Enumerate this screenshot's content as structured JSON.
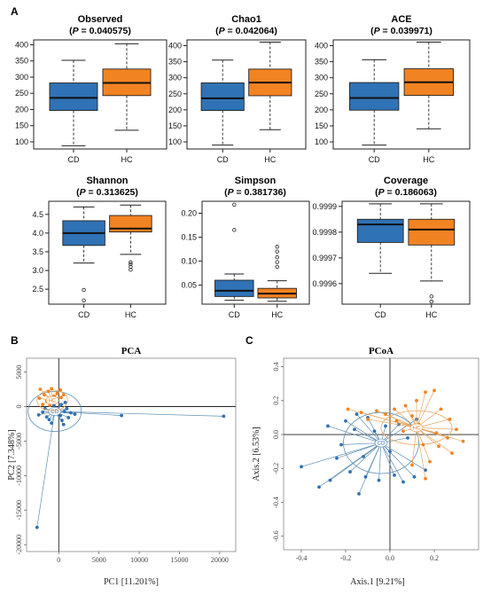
{
  "panel_labels": [
    "A",
    "B",
    "C"
  ],
  "colors": {
    "cd": "#2f72b5",
    "hc": "#f28322",
    "cd_line": "#5d8fb3",
    "hc_line": "#e8a55c"
  },
  "chart_data": [
    {
      "type": "box",
      "title": "Observed",
      "pvalue_label": "P",
      "pvalue_text": " = 0.040575",
      "categories": [
        "CD",
        "HC"
      ],
      "yticks": [
        100,
        150,
        200,
        250,
        300,
        350,
        400
      ],
      "ytick_labels": [
        "100",
        "150",
        "200",
        "250",
        "300",
        "350",
        "400"
      ],
      "ylim": [
        78,
        415
      ],
      "boxes": [
        {
          "group": "CD",
          "whisker_low": 88,
          "q1": 197,
          "median": 236,
          "q3": 282,
          "whisker_high": 352,
          "outliers": []
        },
        {
          "group": "HC",
          "whisker_low": 136,
          "q1": 243,
          "median": 282,
          "q3": 325,
          "whisker_high": 403,
          "outliers": []
        }
      ]
    },
    {
      "type": "box",
      "title": "Chao1",
      "pvalue_label": "P",
      "pvalue_text": " = 0.042064",
      "categories": [
        "CD",
        "HC"
      ],
      "yticks": [
        100,
        150,
        200,
        250,
        300,
        350,
        400
      ],
      "ytick_labels": [
        "100",
        "150",
        "200",
        "250",
        "300",
        "350",
        "400"
      ],
      "ylim": [
        78,
        418
      ],
      "boxes": [
        {
          "group": "CD",
          "whisker_low": 90,
          "q1": 198,
          "median": 236,
          "q3": 284,
          "whisker_high": 355,
          "outliers": []
        },
        {
          "group": "HC",
          "whisker_low": 138,
          "q1": 244,
          "median": 285,
          "q3": 327,
          "whisker_high": 411,
          "outliers": []
        }
      ]
    },
    {
      "type": "box",
      "title": "ACE",
      "pvalue_label": "P",
      "pvalue_text": " = 0.039971",
      "categories": [
        "CD",
        "HC"
      ],
      "yticks": [
        100,
        150,
        200,
        250,
        300,
        350,
        400
      ],
      "ytick_labels": [
        "100",
        "150",
        "200",
        "250",
        "300",
        "350",
        "400"
      ],
      "ylim": [
        78,
        418
      ],
      "boxes": [
        {
          "group": "CD",
          "whisker_low": 90,
          "q1": 199,
          "median": 237,
          "q3": 285,
          "whisker_high": 356,
          "outliers": []
        },
        {
          "group": "HC",
          "whisker_low": 141,
          "q1": 245,
          "median": 286,
          "q3": 328,
          "whisker_high": 411,
          "outliers": []
        }
      ]
    },
    {
      "type": "box",
      "title": "Shannon",
      "pvalue_label": "P",
      "pvalue_text": " = 0.313625",
      "categories": [
        "CD",
        "HC"
      ],
      "yticks": [
        2.5,
        3.0,
        3.5,
        4.0,
        4.5
      ],
      "ytick_labels": [
        "2.5",
        "3.0",
        "3.5",
        "4.0",
        "4.5"
      ],
      "ylim": [
        2.1,
        4.85
      ],
      "boxes": [
        {
          "group": "CD",
          "whisker_low": 3.2,
          "q1": 3.67,
          "median": 4.0,
          "q3": 4.33,
          "whisker_high": 4.7,
          "outliers": [
            2.48,
            2.2
          ]
        },
        {
          "group": "HC",
          "whisker_low": 3.43,
          "q1": 4.03,
          "median": 4.12,
          "q3": 4.47,
          "whisker_high": 4.75,
          "outliers": [
            3.22,
            3.17,
            3.1,
            3.02
          ]
        }
      ]
    },
    {
      "type": "box",
      "title": "Simpson",
      "pvalue_label": "P",
      "pvalue_text": " = 0.381736",
      "categories": [
        "CD",
        "HC"
      ],
      "yticks": [
        0.05,
        0.1,
        0.15,
        0.2
      ],
      "ytick_labels": [
        "0.05",
        "0.10",
        "0.15",
        "0.20"
      ],
      "ylim": [
        0.01,
        0.225
      ],
      "boxes": [
        {
          "group": "CD",
          "whisker_low": 0.018,
          "q1": 0.026,
          "median": 0.038,
          "q3": 0.06,
          "whisker_high": 0.073,
          "outliers": [
            0.218,
            0.165
          ]
        },
        {
          "group": "HC",
          "whisker_low": 0.016,
          "q1": 0.023,
          "median": 0.032,
          "q3": 0.043,
          "whisker_high": 0.059,
          "outliers": [
            0.13,
            0.12,
            0.108,
            0.098,
            0.088
          ]
        }
      ]
    },
    {
      "type": "box",
      "title": "Coverage",
      "pvalue_label": "P",
      "pvalue_text": " = 0.186063",
      "categories": [
        "CD",
        "HC"
      ],
      "yticks": [
        0.9996,
        0.9997,
        0.9998,
        0.9999
      ],
      "ytick_labels": [
        "0.9996",
        "0.9997",
        "0.9998",
        "0.9999"
      ],
      "ylim": [
        0.99952,
        0.99992
      ],
      "boxes": [
        {
          "group": "CD",
          "whisker_low": 0.99964,
          "q1": 0.99976,
          "median": 0.99983,
          "q3": 0.99985,
          "whisker_high": 0.99991,
          "outliers": []
        },
        {
          "group": "HC",
          "whisker_low": 0.99961,
          "q1": 0.99975,
          "median": 0.99981,
          "q3": 0.99985,
          "whisker_high": 0.99991,
          "outliers": [
            0.99955,
            0.99953
          ]
        }
      ]
    },
    {
      "type": "scatter",
      "title": "PCA",
      "xlabel": "PC1 [11.201%]",
      "ylabel": "PC2 [7.348%]",
      "xlim": [
        -4000,
        22000
      ],
      "ylim": [
        -21000,
        7000
      ],
      "xticks": [
        0,
        5000,
        10000,
        15000,
        20000
      ],
      "xtick_labels": [
        "0",
        "5000",
        "10000",
        "15000",
        "20000"
      ],
      "yticks": [
        5000,
        0,
        -5000,
        -10000,
        -15000,
        -20000
      ],
      "ytick_labels": [
        "5000",
        "0",
        "-5000",
        "-10000",
        "-15000",
        "-20000"
      ],
      "groups": [
        {
          "name": "CD",
          "centroid": [
            -500,
            -700
          ],
          "ellipse": {
            "rx": 3300,
            "ry": 2900
          },
          "points": [
            [
              -2000,
              -800
            ],
            [
              -1500,
              -1500
            ],
            [
              -800,
              -600
            ],
            [
              -300,
              -1000
            ],
            [
              200,
              -1300
            ],
            [
              700,
              -700
            ],
            [
              1000,
              -300
            ],
            [
              -1200,
              -1900
            ],
            [
              400,
              -2000
            ],
            [
              1500,
              -900
            ],
            [
              -600,
              200
            ],
            [
              800,
              600
            ],
            [
              -2500,
              -1200
            ],
            [
              300,
              300
            ],
            [
              1200,
              -1600
            ],
            [
              -1700,
              -300
            ],
            [
              2000,
              -1100
            ],
            [
              -900,
              -2400
            ],
            [
              600,
              -2600
            ],
            [
              7800,
              -1300
            ],
            [
              20500,
              -1400
            ],
            [
              -2700,
              -17500
            ]
          ]
        },
        {
          "name": "HC",
          "centroid": [
            -800,
            900
          ],
          "ellipse": {
            "rx": 1900,
            "ry": 1500
          },
          "points": [
            [
              -2300,
              2500
            ],
            [
              -1800,
              1700
            ],
            [
              -1300,
              2200
            ],
            [
              -600,
              1500
            ],
            [
              -200,
              1900
            ],
            [
              300,
              1300
            ],
            [
              -1500,
              800
            ],
            [
              -2400,
              1200
            ],
            [
              -900,
              2600
            ],
            [
              200,
              2400
            ],
            [
              -2000,
              300
            ],
            [
              -400,
              700
            ],
            [
              600,
              1700
            ],
            [
              -1100,
              200
            ]
          ]
        }
      ]
    },
    {
      "type": "scatter",
      "title": "PCoA",
      "xlabel": "Axis.1  [9.21%]",
      "ylabel": "Axis.2  [6.53%]",
      "xlim": [
        -0.48,
        0.4
      ],
      "ylim": [
        -0.68,
        0.45
      ],
      "xticks": [
        -0.4,
        -0.2,
        0.0,
        0.2
      ],
      "xtick_labels": [
        "-0.4",
        "-0.2",
        "0.0",
        "0.2"
      ],
      "yticks": [
        0.4,
        0.2,
        0.0,
        -0.2,
        -0.4,
        -0.6
      ],
      "ytick_labels": [
        "0.4",
        "0.2",
        "0.0",
        "-0.2",
        "-0.4",
        "-0.6"
      ],
      "groups": [
        {
          "name": "CD",
          "centroid": [
            -0.04,
            -0.05
          ],
          "ellipse": {
            "rx": 0.17,
            "ry": 0.18
          },
          "points": [
            [
              -0.4,
              -0.19
            ],
            [
              -0.32,
              -0.31
            ],
            [
              -0.27,
              -0.27
            ],
            [
              -0.18,
              -0.22
            ],
            [
              -0.22,
              -0.06
            ],
            [
              -0.16,
              0.03
            ],
            [
              -0.14,
              -0.35
            ],
            [
              -0.11,
              -0.25
            ],
            [
              -0.05,
              -0.27
            ],
            [
              0.02,
              -0.24
            ],
            [
              0.06,
              -0.28
            ],
            [
              0.11,
              -0.25
            ],
            [
              0.16,
              -0.21
            ],
            [
              -0.2,
              0.08
            ],
            [
              -0.15,
              0.12
            ],
            [
              -0.1,
              0.1
            ],
            [
              -0.07,
              0.02
            ],
            [
              0.0,
              -0.1
            ],
            [
              0.04,
              0.06
            ],
            [
              0.08,
              -0.02
            ],
            [
              -0.12,
              -0.13
            ],
            [
              -0.28,
              0.05
            ],
            [
              0.12,
              0.09
            ],
            [
              -0.02,
              0.05
            ],
            [
              -0.24,
              -0.14
            ]
          ]
        },
        {
          "name": "HC",
          "centroid": [
            0.12,
            0.04
          ],
          "ellipse": {
            "rx": 0.16,
            "ry": 0.1
          },
          "points": [
            [
              -0.19,
              0.15
            ],
            [
              -0.13,
              0.13
            ],
            [
              -0.06,
              0.14
            ],
            [
              -0.02,
              0.12
            ],
            [
              0.02,
              0.15
            ],
            [
              0.07,
              0.17
            ],
            [
              0.12,
              0.2
            ],
            [
              0.16,
              0.25
            ],
            [
              0.2,
              0.26
            ],
            [
              0.23,
              0.15
            ],
            [
              0.27,
              0.09
            ],
            [
              0.3,
              0.03
            ],
            [
              0.33,
              -0.04
            ],
            [
              0.28,
              -0.11
            ],
            [
              0.22,
              -0.07
            ],
            [
              0.18,
              -0.16
            ],
            [
              0.16,
              -0.26
            ],
            [
              0.1,
              -0.18
            ],
            [
              0.06,
              0.02
            ],
            [
              0.13,
              0.06
            ],
            [
              0.1,
              0.11
            ],
            [
              0.21,
              0.01
            ],
            [
              0.26,
              -0.02
            ],
            [
              -0.1,
              0.09
            ],
            [
              0.03,
              0.08
            ],
            [
              0.15,
              -0.06
            ]
          ]
        }
      ]
    }
  ]
}
